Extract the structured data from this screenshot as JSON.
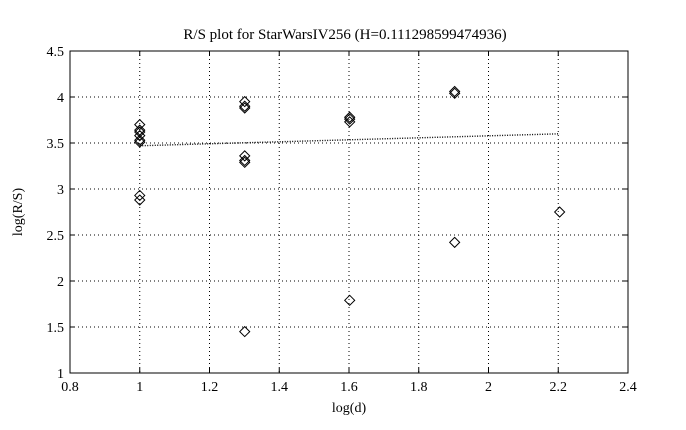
{
  "chart_data": {
    "type": "scatter",
    "title": "R/S plot for StarWarsIV256 (H=0.111298599474936)",
    "xlabel": "log(d)",
    "ylabel": "log(R/S)",
    "xlim": [
      0.8,
      2.4
    ],
    "ylim": [
      1,
      4.5
    ],
    "xticks": [
      "0.8",
      "1",
      "1.2",
      "1.4",
      "1.6",
      "1.8",
      "2",
      "2.2",
      "2.4"
    ],
    "yticks": [
      "1",
      "1.5",
      "2",
      "2.5",
      "3",
      "3.5",
      "4",
      "4.5"
    ],
    "grid": true,
    "series": [
      {
        "marker": "diamond",
        "x": [
          1.0,
          1.0,
          1.0,
          1.0,
          1.0,
          1.0,
          1.0,
          1.0,
          1.301,
          1.301,
          1.301,
          1.301,
          1.301,
          1.301,
          1.301,
          1.602,
          1.602,
          1.602,
          1.602,
          1.903,
          1.903,
          1.903,
          2.204
        ],
        "y": [
          3.7,
          3.64,
          3.62,
          3.58,
          3.53,
          3.51,
          2.93,
          2.88,
          3.95,
          3.9,
          3.88,
          3.36,
          3.31,
          3.29,
          1.45,
          3.78,
          3.76,
          3.73,
          1.79,
          4.06,
          4.04,
          2.42,
          2.75
        ]
      }
    ],
    "fit_line": {
      "x": [
        1.0,
        2.204
      ],
      "y": [
        3.47,
        3.6
      ]
    }
  }
}
